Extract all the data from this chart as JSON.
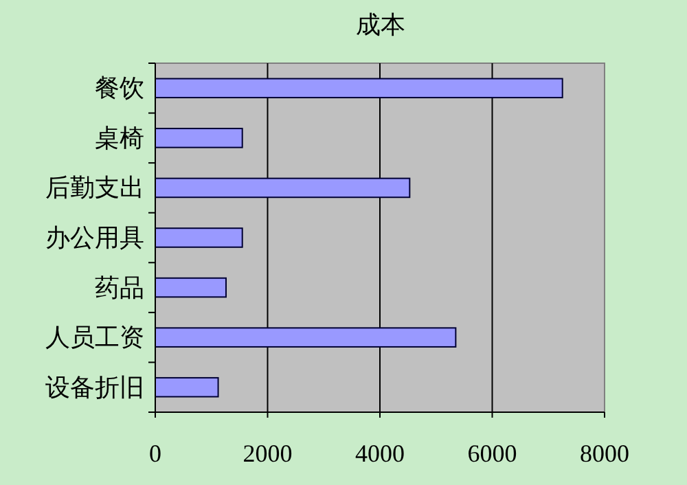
{
  "chart_data": {
    "type": "bar",
    "title": "成本",
    "orientation": "horizontal",
    "categories": [
      "餐饮",
      "桌椅",
      "后勤支出",
      "办公用具",
      "药品",
      "人员工资",
      "设备折旧"
    ],
    "series": [
      {
        "color": "#9999ff",
        "values": [
          7250,
          1550,
          4530,
          1550,
          1260,
          5350,
          1120
        ]
      }
    ],
    "xlim": [
      0,
      8000
    ],
    "xticks": [
      0,
      2000,
      4000,
      6000,
      8000
    ],
    "grid": "x"
  }
}
